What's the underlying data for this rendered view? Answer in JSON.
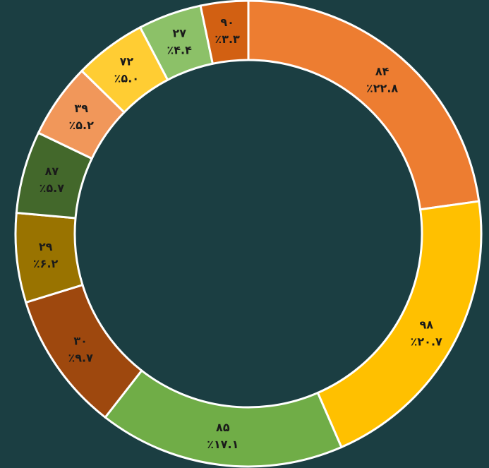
{
  "chart_data": {
    "type": "donut",
    "categories": [
      "۸۴",
      "۹۸",
      "۸۵",
      "۳۰",
      "۲۹",
      "۸۷",
      "۳۹",
      "۷۲",
      "۲۷",
      "۹۰"
    ],
    "values": [
      22.8,
      20.7,
      17.1,
      9.7,
      6.2,
      5.7,
      5.2,
      5.0,
      4.4,
      3.3
    ],
    "value_labels": [
      "٪۲۲.۸",
      "٪۲۰.۷",
      "٪۱۷.۱",
      "٪۹.۷",
      "٪۶.۲",
      "٪۵.۷",
      "٪۵.۲",
      "٪۵.۰",
      "٪۴.۴",
      "٪۳.۳"
    ],
    "colors": [
      "#ED7D31",
      "#FFC000",
      "#70AD47",
      "#9E480E",
      "#997300",
      "#43682B",
      "#F1975A",
      "#FFCD33",
      "#8CC168",
      "#D26012"
    ]
  }
}
